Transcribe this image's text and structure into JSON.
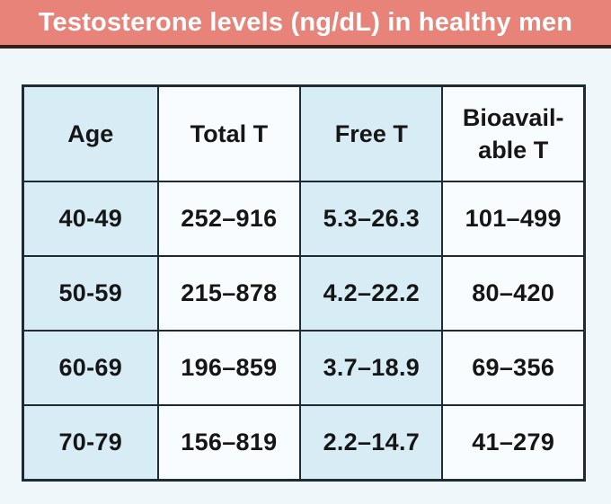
{
  "header": {
    "title": "Testosterone levels (ng/dL) in healthy men"
  },
  "table": {
    "display_headers": [
      "Age",
      "Total T",
      "Free T",
      "Bioavail-\nable T"
    ]
  },
  "chart_data": {
    "type": "table",
    "title": "Testosterone levels (ng/dL) in healthy men",
    "columns": [
      "Age",
      "Total T",
      "Free T",
      "Bioavailable T"
    ],
    "rows": [
      [
        "40-49",
        "252–916",
        "5.3–26.3",
        "101–499"
      ],
      [
        "50-59",
        "215–878",
        "4.2–22.2",
        "80–420"
      ],
      [
        "60-69",
        "196–859",
        "3.7–18.9",
        "69–356"
      ],
      [
        "70-79",
        "156–819",
        "2.2–14.7",
        "41–279"
      ]
    ]
  },
  "colors": {
    "title_bar_bg": "#E8837A",
    "title_text": "#FFFFFF",
    "divider": "#33201B",
    "page_bg": "#F0F7FA",
    "cell_blue": "#D8ECF6",
    "cell_white": "#F9FCFE",
    "table_border": "#1F2B33",
    "cell_text": "#161616"
  }
}
